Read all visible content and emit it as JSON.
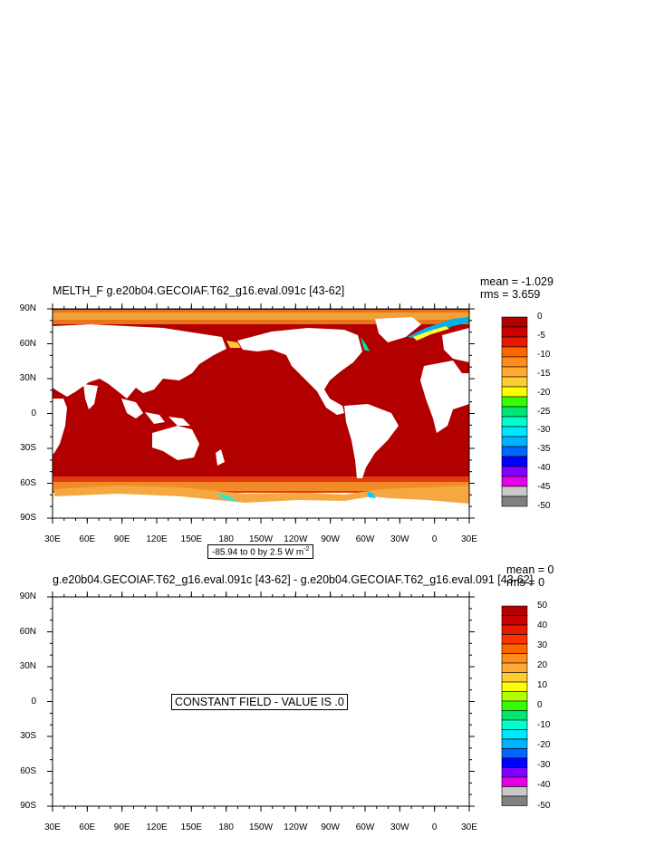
{
  "panel1": {
    "title": "MELTH_F g.e20b04.GECOIAF.T62_g16.eval.091c [43-62]",
    "mean": "mean = -1.029",
    "rms": "rms = 3.659",
    "contour_info": "-85.94 to 0 by 2.5  W m",
    "contour_info_sup": "-2"
  },
  "panel2": {
    "title": "g.e20b04.GECOIAF.T62_g16.eval.091c [43-62] - g.e20b04.GECOIAF.T62_g16.eval.091 [43-62]",
    "mean": "mean = 0",
    "rms": "rms = 0",
    "constant_label": "CONSTANT FIELD - VALUE IS .0"
  },
  "lat_labels": [
    "90N",
    "60N",
    "30N",
    "0",
    "30S",
    "60S",
    "90S"
  ],
  "lon_labels": [
    "30E",
    "60E",
    "90E",
    "120E",
    "150E",
    "180",
    "150W",
    "120W",
    "90W",
    "60W",
    "30W",
    "0",
    "30E"
  ],
  "colors": {
    "ramp1": [
      "#b20000",
      "#cc0000",
      "#e61a00",
      "#ff6600",
      "#ff8c1a",
      "#ffaa33",
      "#ffcc33",
      "#ffff00",
      "#33ff00",
      "#00e673",
      "#00ffcc",
      "#00e6ff",
      "#00b3ff",
      "#0066ff",
      "#0000ff",
      "#8000ff",
      "#e600e6",
      "#c8c8c8",
      "#808080"
    ],
    "ramp2": [
      "#b20000",
      "#cc0000",
      "#e61a00",
      "#ff3300",
      "#ff6600",
      "#ff8c1a",
      "#ffaa33",
      "#ffcc33",
      "#ffff00",
      "#b3ff00",
      "#33ff00",
      "#00e673",
      "#00ffcc",
      "#00e6ff",
      "#00b3ff",
      "#0066ff",
      "#0000ff",
      "#8000ff",
      "#e600e6",
      "#c8c8c8",
      "#808080"
    ],
    "ocean": "#b20000",
    "land": "#ffffff"
  },
  "chart_data": [
    {
      "type": "heatmap",
      "title": "MELTH_F g.e20b04.GECOIAF.T62_g16.eval.091c [43-62]",
      "units": "W m-2",
      "contour_min": -85.94,
      "contour_max": 0,
      "contour_interval": 2.5,
      "mean": -1.029,
      "rms": 3.659,
      "colorbar_labels": [
        "0",
        "-5",
        "-10",
        "-15",
        "-20",
        "-25",
        "-30",
        "-35",
        "-40",
        "-45",
        "-50"
      ],
      "x_ticks": [
        "30E",
        "60E",
        "90E",
        "120E",
        "150E",
        "180",
        "150W",
        "120W",
        "90W",
        "60W",
        "30W",
        "0",
        "30E"
      ],
      "y_ticks": [
        "90N",
        "60N",
        "30N",
        "0",
        "30S",
        "60S",
        "90S"
      ]
    },
    {
      "type": "heatmap",
      "title": "g.e20b04.GECOIAF.T62_g16.eval.091c [43-62] - g.e20b04.GECOIAF.T62_g16.eval.091 [43-62]",
      "mean": 0,
      "rms": 0,
      "constant_value": 0,
      "colorbar_labels": [
        "50",
        "40",
        "30",
        "20",
        "10",
        "0",
        "-10",
        "-20",
        "-30",
        "-40",
        "-50"
      ],
      "x_ticks": [
        "30E",
        "60E",
        "90E",
        "120E",
        "150E",
        "180",
        "150W",
        "120W",
        "90W",
        "60W",
        "30W",
        "0",
        "30E"
      ],
      "y_ticks": [
        "90N",
        "60N",
        "30N",
        "0",
        "30S",
        "60S",
        "90S"
      ]
    }
  ]
}
